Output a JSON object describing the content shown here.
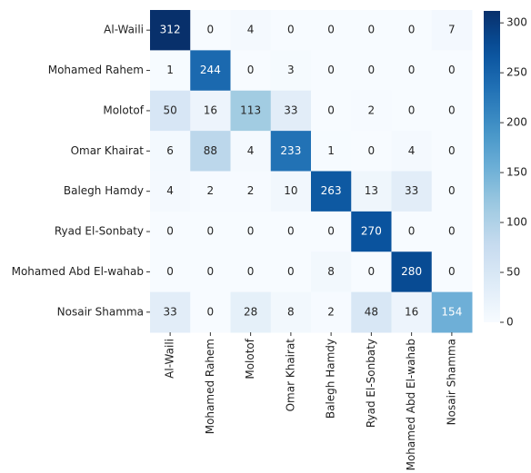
{
  "chart_data": {
    "type": "heatmap",
    "row_labels": [
      "Al-Waili",
      "Mohamed Rahem",
      "Molotof",
      "Omar Khairat",
      "Balegh Hamdy",
      "Ryad El-Sonbaty",
      "Mohamed Abd El-wahab",
      "Nosair Shamma"
    ],
    "col_labels": [
      "Al-Waili",
      "Mohamed Rahem",
      "Molotof",
      "Omar Khairat",
      "Balegh Hamdy",
      "Ryad El-Sonbaty",
      "Mohamed Abd El-wahab",
      "Nosair Shamma"
    ],
    "values": [
      [
        312,
        0,
        4,
        0,
        0,
        0,
        0,
        7
      ],
      [
        1,
        244,
        0,
        3,
        0,
        0,
        0,
        0
      ],
      [
        50,
        16,
        113,
        33,
        0,
        2,
        0,
        0
      ],
      [
        6,
        88,
        4,
        233,
        1,
        0,
        4,
        0
      ],
      [
        4,
        2,
        2,
        10,
        263,
        13,
        33,
        0
      ],
      [
        0,
        0,
        0,
        0,
        0,
        270,
        0,
        0
      ],
      [
        0,
        0,
        0,
        0,
        8,
        0,
        280,
        0
      ],
      [
        33,
        0,
        28,
        8,
        2,
        48,
        16,
        154
      ]
    ],
    "colormap": "Blues",
    "clim": [
      0,
      312
    ],
    "cticks": [
      0,
      50,
      100,
      150,
      200,
      250,
      300
    ]
  }
}
